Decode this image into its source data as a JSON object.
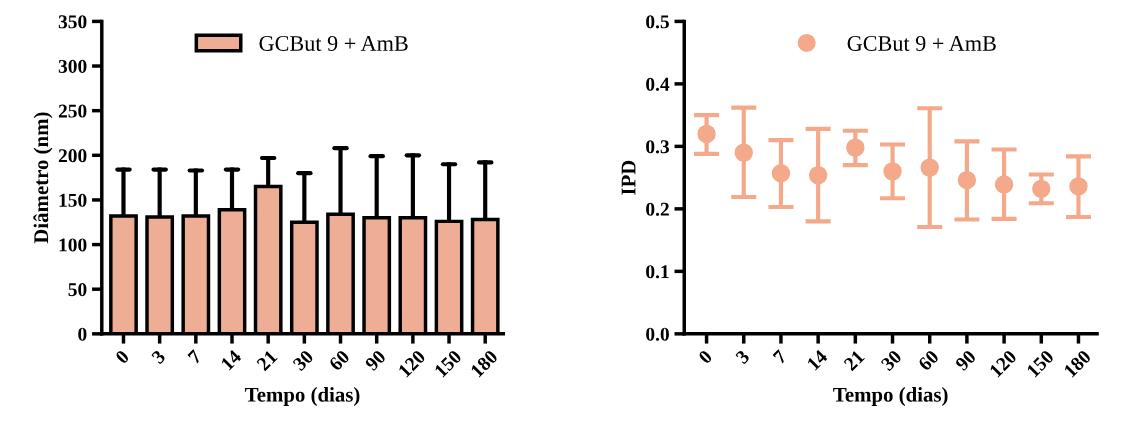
{
  "chart_data": [
    {
      "type": "bar",
      "xlabel": "Tempo (dias)",
      "ylabel": "Diâmetro (nm)",
      "categories": [
        "0",
        "3",
        "7",
        "14",
        "21",
        "30",
        "60",
        "90",
        "120",
        "150",
        "180"
      ],
      "series": [
        {
          "name": "GCBut 9 + AmB",
          "color": "#eeae96",
          "values": [
            132,
            131,
            132,
            139,
            165,
            125,
            134,
            130,
            130,
            126,
            128
          ],
          "errors": [
            [
              132,
              184
            ],
            [
              131,
              184
            ],
            [
              132,
              183
            ],
            [
              139,
              184
            ],
            [
              165,
              197
            ],
            [
              125,
              180
            ],
            [
              134,
              208
            ],
            [
              130,
              199
            ],
            [
              130,
              200
            ],
            [
              126,
              190
            ],
            [
              128,
              192
            ]
          ]
        }
      ],
      "ylim": [
        0,
        350
      ],
      "yticks": [
        0,
        50,
        100,
        150,
        200,
        250,
        300,
        350
      ],
      "legend": "top",
      "grid": false
    },
    {
      "type": "scatter",
      "xlabel": "Tempo (dias)",
      "ylabel": "IPD",
      "categories": [
        "0",
        "3",
        "7",
        "14",
        "21",
        "30",
        "60",
        "90",
        "120",
        "150",
        "180"
      ],
      "series": [
        {
          "name": "GCBut 9 + AmB",
          "color": "#f4a98a",
          "values": [
            0.32,
            0.29,
            0.257,
            0.254,
            0.298,
            0.26,
            0.266,
            0.246,
            0.239,
            0.232,
            0.236
          ],
          "errors": [
            [
              0.288,
              0.35
            ],
            [
              0.219,
              0.362
            ],
            [
              0.203,
              0.31
            ],
            [
              0.18,
              0.328
            ],
            [
              0.27,
              0.325
            ],
            [
              0.217,
              0.303
            ],
            [
              0.171,
              0.361
            ],
            [
              0.183,
              0.308
            ],
            [
              0.184,
              0.295
            ],
            [
              0.209,
              0.255
            ],
            [
              0.187,
              0.284
            ]
          ]
        }
      ],
      "ylim": [
        0,
        0.5
      ],
      "yticks": [
        {
          "value": 0,
          "label": "0.0"
        },
        0.1,
        0.2,
        0.3,
        0.4,
        0.5
      ],
      "legend": "top",
      "marker": "circle",
      "grid": false
    }
  ]
}
